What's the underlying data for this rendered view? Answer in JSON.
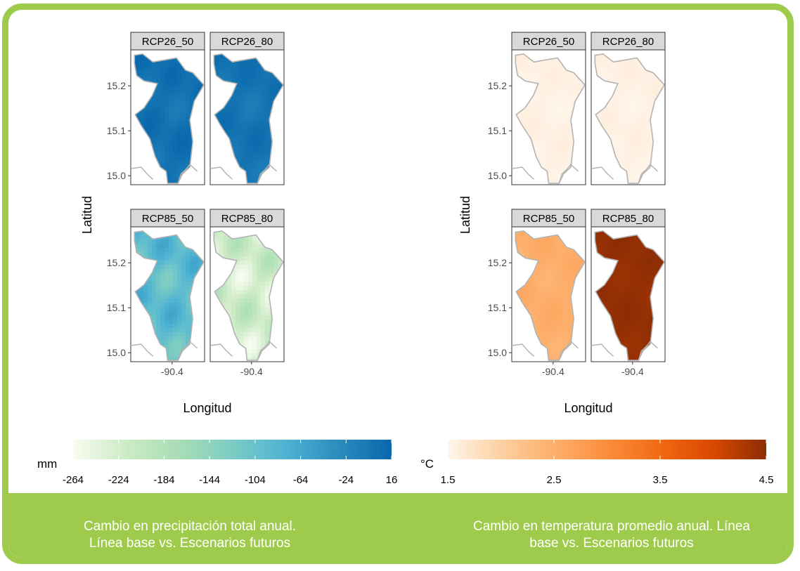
{
  "colors": {
    "frame": "#9fcb4c",
    "strip": "#d9d9d9",
    "precip_ramp": [
      "#f7fcf0",
      "#ccebc5",
      "#a8ddb5",
      "#7bccc4",
      "#4eb3d3",
      "#2b8cbe",
      "#0868ac"
    ],
    "temp_ramp": [
      "#fff5eb",
      "#fdd0a2",
      "#fdae6b",
      "#fd8d3c",
      "#f16913",
      "#d94801",
      "#8c2d04"
    ]
  },
  "captions": {
    "left": [
      "Cambio en precipitación total anual.",
      "Línea base vs. Escenarios futuros"
    ],
    "right": [
      "Cambio en temperatura promedio anual. Línea",
      "base vs. Escenarios futuros"
    ]
  },
  "chart_data": [
    {
      "type": "heatmap",
      "variable": "precipitation-change",
      "xlabel": "Longitud",
      "ylabel": "Latitud",
      "x_ticks": [
        "-90.4"
      ],
      "y_ticks": [
        "15.0",
        "15.1",
        "15.2"
      ],
      "ylim": [
        14.98,
        15.28
      ],
      "panels": [
        {
          "label": "RCP26_50",
          "value_range": [
            -10,
            16
          ]
        },
        {
          "label": "RCP26_80",
          "value_range": [
            -12,
            12
          ]
        },
        {
          "label": "RCP85_50",
          "value_range": [
            -130,
            -60
          ]
        },
        {
          "label": "RCP85_80",
          "value_range": [
            -264,
            -180
          ]
        }
      ],
      "legend": {
        "title": "mm",
        "min": -264,
        "max": 16,
        "ticks": [
          "-264",
          "-224",
          "-184",
          "-144",
          "-104",
          "-64",
          "-24",
          "16"
        ]
      }
    },
    {
      "type": "heatmap",
      "variable": "temperature-change",
      "xlabel": "Longitud",
      "ylabel": "Latitud",
      "x_ticks": [
        "-90.4"
      ],
      "y_ticks": [
        "15.0",
        "15.1",
        "15.2"
      ],
      "ylim": [
        14.98,
        15.28
      ],
      "panels": [
        {
          "label": "RCP26_50",
          "value_range": [
            1.5,
            1.6
          ]
        },
        {
          "label": "RCP26_80",
          "value_range": [
            1.5,
            1.6
          ]
        },
        {
          "label": "RCP85_50",
          "value_range": [
            2.4,
            2.6
          ]
        },
        {
          "label": "RCP85_80",
          "value_range": [
            4.4,
            4.5
          ]
        }
      ],
      "legend": {
        "title": "°C",
        "min": 1.5,
        "max": 4.5,
        "ticks": [
          "1.5",
          "2.5",
          "3.5",
          "4.5"
        ]
      }
    }
  ]
}
